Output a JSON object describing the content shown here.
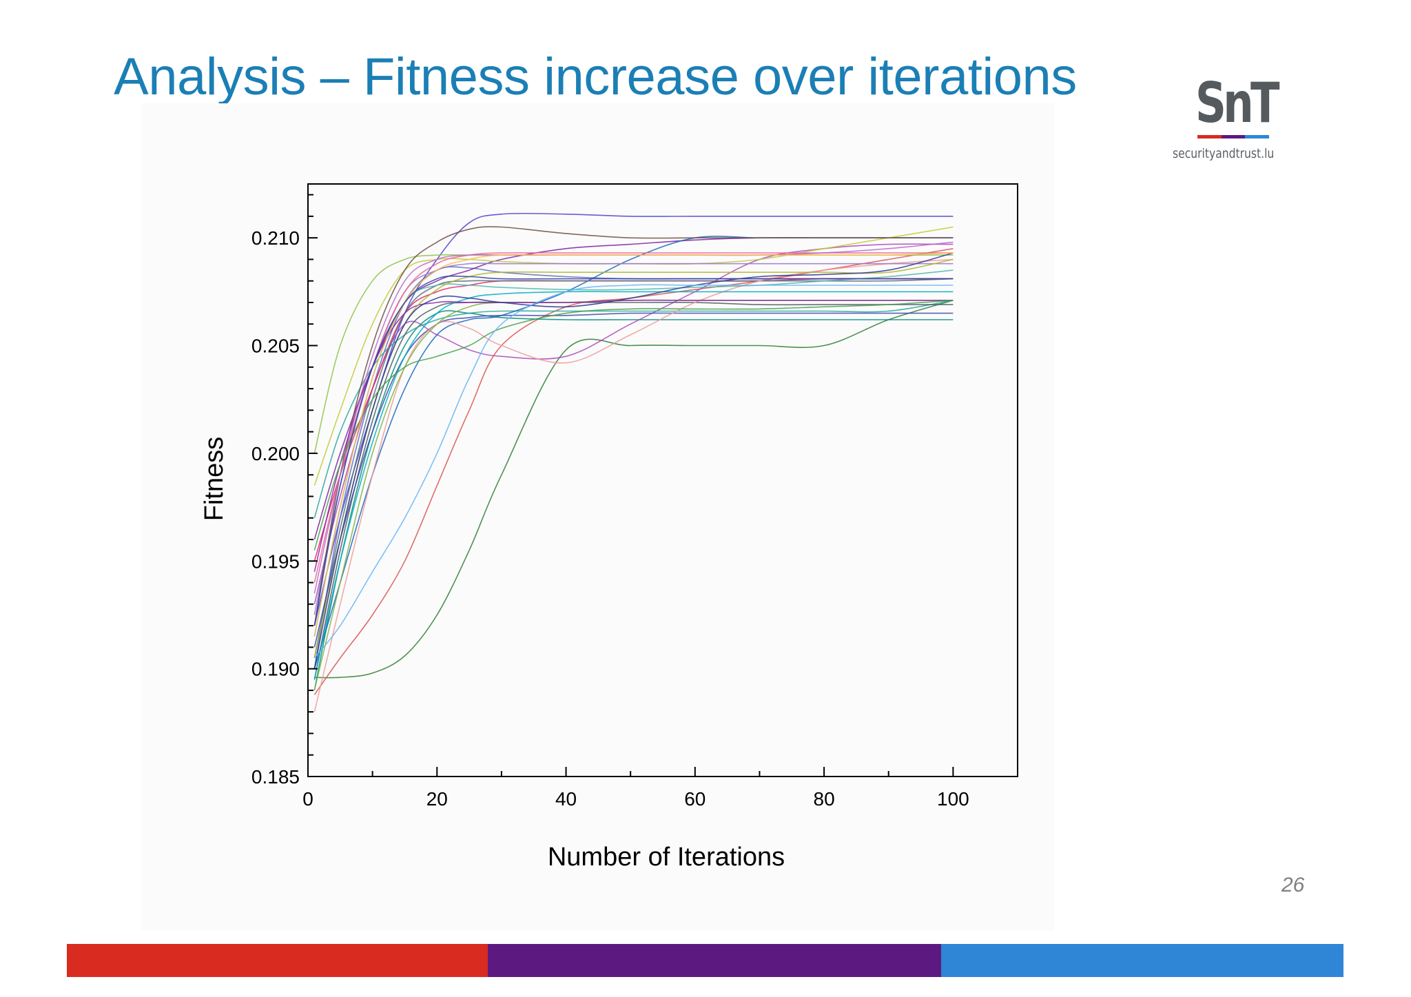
{
  "slide": {
    "title": "Analysis – Fitness increase over iterations",
    "page_number": "26"
  },
  "logo": {
    "mark": "SnT",
    "subtitle": "securityandtrust.lu",
    "bar_colors": [
      "#d92b1f",
      "#5c1a80",
      "#2f86d6"
    ]
  },
  "footer": {
    "colors": [
      "#d92b1f",
      "#5c1a80",
      "#2f86d6"
    ],
    "proportions": [
      0.33,
      0.355,
      0.315
    ]
  },
  "chart_data": {
    "type": "line",
    "title": "",
    "xlabel": "Number of Iterations",
    "ylabel": "Fitness",
    "xlim": [
      0,
      110
    ],
    "ylim": [
      0.185,
      0.2125
    ],
    "x_ticks": [
      0,
      20,
      40,
      60,
      80,
      100
    ],
    "x_tick_labels": [
      "0",
      "20",
      "40",
      "60",
      "80",
      "100"
    ],
    "y_ticks": [
      0.185,
      0.19,
      0.195,
      0.2,
      0.205,
      0.21
    ],
    "y_tick_labels": [
      "0.185",
      "0.190",
      "0.195",
      "0.200",
      "0.205",
      "0.210"
    ],
    "grid": false,
    "legend": "none",
    "x": [
      1,
      5,
      10,
      15,
      20,
      25,
      30,
      40,
      50,
      60,
      70,
      80,
      90,
      100
    ],
    "series": [
      {
        "color": "#4a3fd0",
        "values": [
          0.192,
          0.197,
          0.202,
          0.2065,
          0.209,
          0.2107,
          0.2111,
          0.2111,
          0.211,
          0.211,
          0.211,
          0.211,
          0.211,
          0.211
        ]
      },
      {
        "color": "#2e7d32",
        "values": [
          0.1896,
          0.1896,
          0.1898,
          0.1906,
          0.1925,
          0.1955,
          0.199,
          0.2048,
          0.205,
          0.205,
          0.205,
          0.205,
          0.2062,
          0.2071
        ]
      },
      {
        "color": "#d9534f",
        "values": [
          0.1888,
          0.1905,
          0.1925,
          0.195,
          0.1985,
          0.202,
          0.205,
          0.2068,
          0.2072,
          0.2076,
          0.208,
          0.2085,
          0.209,
          0.2095
        ]
      },
      {
        "color": "#8bc34a",
        "values": [
          0.2,
          0.205,
          0.208,
          0.209,
          0.2092,
          0.2092,
          0.2092,
          0.2092,
          0.2092,
          0.2092,
          0.2092,
          0.2092,
          0.2092,
          0.2092
        ]
      },
      {
        "color": "#5c6bc0",
        "values": [
          0.19,
          0.197,
          0.203,
          0.207,
          0.2085,
          0.2086,
          0.2084,
          0.2082,
          0.2081,
          0.2081,
          0.2081,
          0.2081,
          0.2081,
          0.2081
        ]
      },
      {
        "color": "#00897b",
        "values": [
          0.189,
          0.195,
          0.201,
          0.205,
          0.2065,
          0.2065,
          0.2063,
          0.2062,
          0.2062,
          0.2062,
          0.2062,
          0.2062,
          0.2062,
          0.2062
        ]
      },
      {
        "color": "#7b1fa2",
        "values": [
          0.196,
          0.2,
          0.204,
          0.207,
          0.208,
          0.2085,
          0.209,
          0.2095,
          0.2097,
          0.2099,
          0.21,
          0.21,
          0.21,
          0.21
        ]
      },
      {
        "color": "#ab47bc",
        "values": [
          0.193,
          0.198,
          0.203,
          0.206,
          0.2055,
          0.2048,
          0.2045,
          0.2045,
          0.206,
          0.2075,
          0.209,
          0.2095,
          0.2097,
          0.2097
        ]
      },
      {
        "color": "#e91e63",
        "values": [
          0.195,
          0.199,
          0.203,
          0.2065,
          0.2075,
          0.2078,
          0.208,
          0.208,
          0.208,
          0.208,
          0.208,
          0.2081,
          0.2081,
          0.2081
        ]
      },
      {
        "color": "#26a69a",
        "values": [
          0.197,
          0.201,
          0.204,
          0.2055,
          0.2062,
          0.2065,
          0.2066,
          0.2066,
          0.2066,
          0.2066,
          0.2066,
          0.2066,
          0.2066,
          0.2071
        ]
      },
      {
        "color": "#1565c0",
        "values": [
          0.19,
          0.194,
          0.199,
          0.203,
          0.2055,
          0.2062,
          0.2064,
          0.2075,
          0.209,
          0.21,
          0.21,
          0.21,
          0.21,
          0.21
        ]
      },
      {
        "color": "#c0ca33",
        "values": [
          0.1985,
          0.202,
          0.206,
          0.2085,
          0.209,
          0.209,
          0.2089,
          0.2088,
          0.2088,
          0.2088,
          0.209,
          0.2095,
          0.21,
          0.2105
        ]
      },
      {
        "color": "#546e7a",
        "values": [
          0.1905,
          0.1965,
          0.2025,
          0.2065,
          0.2078,
          0.208,
          0.208,
          0.208,
          0.208,
          0.208,
          0.208,
          0.208,
          0.208,
          0.2081
        ]
      },
      {
        "color": "#455a64",
        "values": [
          0.1895,
          0.1955,
          0.2015,
          0.2055,
          0.2068,
          0.207,
          0.207,
          0.207,
          0.207,
          0.207,
          0.2069,
          0.2069,
          0.2069,
          0.2069
        ]
      },
      {
        "color": "#3949ab",
        "values": [
          0.191,
          0.196,
          0.201,
          0.2045,
          0.206,
          0.2063,
          0.2064,
          0.2064,
          0.2065,
          0.2065,
          0.2065,
          0.2065,
          0.2065,
          0.2065
        ]
      },
      {
        "color": "#ef9a9a",
        "values": [
          0.188,
          0.193,
          0.199,
          0.204,
          0.206,
          0.2058,
          0.205,
          0.2042,
          0.2055,
          0.207,
          0.208,
          0.2085,
          0.2088,
          0.209
        ]
      },
      {
        "color": "#9575cd",
        "values": [
          0.1925,
          0.1985,
          0.204,
          0.2075,
          0.2085,
          0.2088,
          0.2088,
          0.2088,
          0.2088,
          0.2088,
          0.2088,
          0.2088,
          0.2088,
          0.2088
        ]
      },
      {
        "color": "#4db6ac",
        "values": [
          0.1915,
          0.1975,
          0.2035,
          0.207,
          0.2078,
          0.2078,
          0.2077,
          0.2076,
          0.2076,
          0.2077,
          0.2078,
          0.208,
          0.2082,
          0.2085
        ]
      },
      {
        "color": "#f06292",
        "values": [
          0.194,
          0.199,
          0.204,
          0.2075,
          0.2088,
          0.2092,
          0.2093,
          0.2093,
          0.2093,
          0.2093,
          0.2093,
          0.2093,
          0.2093,
          0.2093
        ]
      },
      {
        "color": "#7cb342",
        "values": [
          0.189,
          0.194,
          0.2,
          0.204,
          0.206,
          0.2068,
          0.207,
          0.207,
          0.2071,
          0.2071,
          0.2071,
          0.2071,
          0.2071,
          0.2071
        ]
      },
      {
        "color": "#6d4c41",
        "values": [
          0.192,
          0.199,
          0.205,
          0.2085,
          0.2098,
          0.2104,
          0.2105,
          0.2102,
          0.21,
          0.21,
          0.21,
          0.21,
          0.21,
          0.21
        ]
      },
      {
        "color": "#00acc1",
        "values": [
          0.1895,
          0.195,
          0.2005,
          0.2045,
          0.2065,
          0.2072,
          0.2074,
          0.2075,
          0.2075,
          0.2075,
          0.2075,
          0.2075,
          0.2075,
          0.2075
        ]
      },
      {
        "color": "#8e24aa",
        "values": [
          0.1945,
          0.1995,
          0.204,
          0.2065,
          0.207,
          0.207,
          0.207,
          0.207,
          0.2071,
          0.2071,
          0.2071,
          0.2071,
          0.2071,
          0.2071
        ]
      },
      {
        "color": "#afb42b",
        "values": [
          0.1905,
          0.196,
          0.202,
          0.206,
          0.2076,
          0.2082,
          0.2084,
          0.2084,
          0.2084,
          0.2084,
          0.2084,
          0.2084,
          0.2084,
          0.209
        ]
      },
      {
        "color": "#283593",
        "values": [
          0.19,
          0.196,
          0.202,
          0.206,
          0.2072,
          0.2072,
          0.207,
          0.2068,
          0.2072,
          0.2078,
          0.2082,
          0.2083,
          0.2085,
          0.2093
        ]
      },
      {
        "color": "#ba68c8",
        "values": [
          0.1935,
          0.199,
          0.2045,
          0.208,
          0.209,
          0.2092,
          0.2092,
          0.2092,
          0.2092,
          0.2092,
          0.2092,
          0.2093,
          0.2095,
          0.2098
        ]
      },
      {
        "color": "#43a047",
        "values": [
          0.1955,
          0.1995,
          0.2025,
          0.204,
          0.2045,
          0.205,
          0.2058,
          0.2065,
          0.2067,
          0.2067,
          0.2067,
          0.2068,
          0.2069,
          0.2071
        ]
      },
      {
        "color": "#64b5f6",
        "values": [
          0.1905,
          0.192,
          0.1945,
          0.197,
          0.2,
          0.2035,
          0.206,
          0.2075,
          0.2078,
          0.2078,
          0.2078,
          0.2078,
          0.2078,
          0.2078
        ]
      },
      {
        "color": "#ffb74d",
        "values": [
          0.1915,
          0.1975,
          0.2035,
          0.207,
          0.2085,
          0.209,
          0.2092,
          0.2092,
          0.2092,
          0.2092,
          0.2092,
          0.2092,
          0.2092,
          0.2093
        ]
      },
      {
        "color": "#303f9f",
        "values": [
          0.192,
          0.1985,
          0.204,
          0.207,
          0.2081,
          0.2082,
          0.2081,
          0.2081,
          0.2081,
          0.2081,
          0.2081,
          0.2081,
          0.2081,
          0.2081
        ]
      }
    ]
  }
}
